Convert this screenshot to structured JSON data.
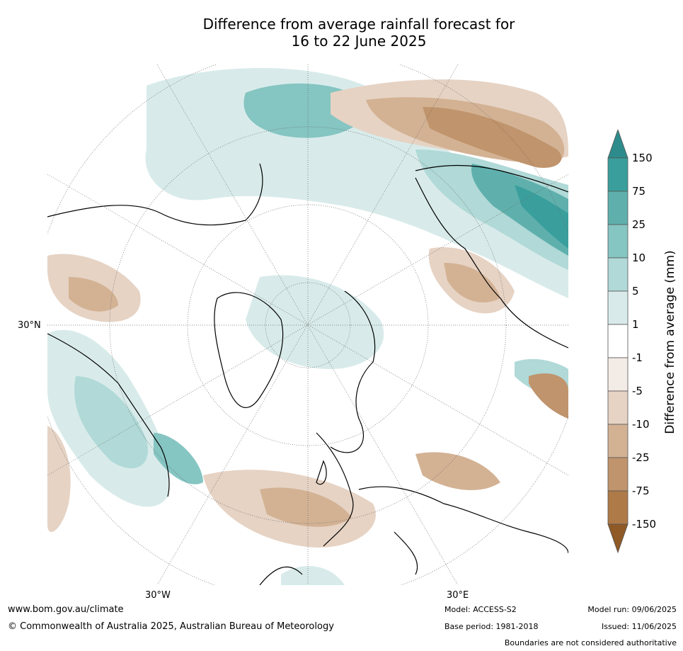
{
  "title_line1": "Difference from average rainfall forecast for",
  "title_line2": "16 to 22 June 2025",
  "map_labels": {
    "lat_left": "30°N",
    "lon_bottom_left": "30°W",
    "lon_bottom_right": "30°E"
  },
  "legend": {
    "title": "Difference from average (mm)",
    "ticks": [
      "150",
      "75",
      "25",
      "10",
      "5",
      "1",
      "-1",
      "-5",
      "-10",
      "-25",
      "-75",
      "-150"
    ],
    "colors": [
      "#2e8b8b",
      "#3a9f9c",
      "#5fb0ad",
      "#85c5c2",
      "#b0d9d7",
      "#d8ebea",
      "#ffffff",
      "#f3ebe6",
      "#e6d3c4",
      "#d3b294",
      "#c0946c",
      "#ae7a48",
      "#8f5a26"
    ]
  },
  "footer": {
    "website": "www.bom.gov.au/climate",
    "copyright": "© Commonwealth of Australia 2025, Australian Bureau of Meteorology",
    "model": "Model: ACCESS-S2",
    "base_period": "Base period: 1981-2018",
    "model_run": "Model run: 09/06/2025",
    "issued": "Issued: 11/06/2025",
    "disclaimer": "Boundaries are not considered authoritative"
  }
}
